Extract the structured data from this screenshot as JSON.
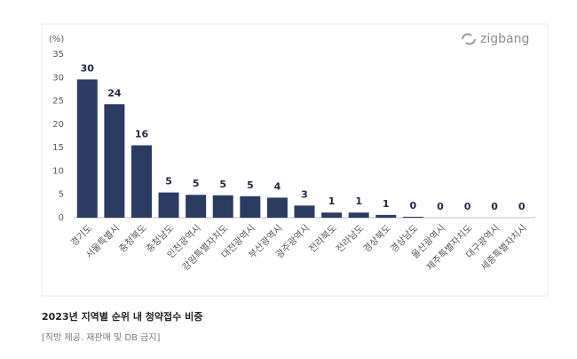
{
  "chart_data": {
    "type": "bar",
    "y_unit": "(%)",
    "brand": "zigbang",
    "caption": "2023년 지역별 순위 내 청약접수 비중",
    "source": "[직방 제공. 재판매 및 DB 금지]",
    "categories": [
      "경기도",
      "서울특별시",
      "충청북도",
      "충청남도",
      "인천광역시",
      "강원특별자치도",
      "대전광역시",
      "부산광역시",
      "광주광역시",
      "전라북도",
      "전라남도",
      "경상북도",
      "경상남도",
      "울산광역시",
      "제주특별자치도",
      "대구광역시",
      "세종특별자치시"
    ],
    "values": [
      29.6,
      24.3,
      15.5,
      5.4,
      4.9,
      4.8,
      4.6,
      4.3,
      2.6,
      1.1,
      1.1,
      0.6,
      0.2,
      0,
      0,
      0,
      0
    ],
    "value_labels": [
      "30",
      "24",
      "16",
      "5",
      "5",
      "5",
      "5",
      "4",
      "3",
      "1",
      "1",
      "1",
      "0",
      "0",
      "0",
      "0",
      "0"
    ],
    "color": "#2b3c63",
    "ylim": [
      0,
      35
    ],
    "yticks": [
      0,
      5,
      10,
      15,
      20,
      25,
      30,
      35
    ],
    "grid": false
  }
}
